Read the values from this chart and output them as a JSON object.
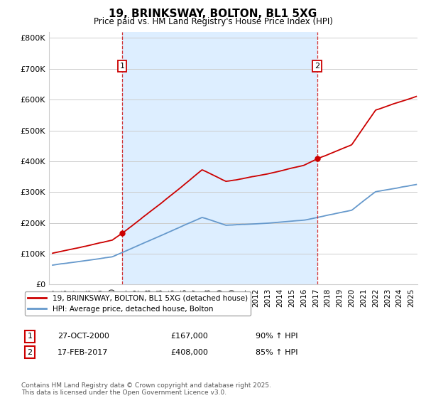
{
  "title": "19, BRINKSWAY, BOLTON, BL1 5XG",
  "subtitle": "Price paid vs. HM Land Registry's House Price Index (HPI)",
  "ylabel_ticks": [
    "£0",
    "£100K",
    "£200K",
    "£300K",
    "£400K",
    "£500K",
    "£600K",
    "£700K",
    "£800K"
  ],
  "ytick_values": [
    0,
    100000,
    200000,
    300000,
    400000,
    500000,
    600000,
    700000,
    800000
  ],
  "ylim": [
    0,
    820000
  ],
  "xlim_start": 1994.7,
  "xlim_end": 2025.5,
  "red_line_color": "#cc0000",
  "blue_line_color": "#6699cc",
  "vline_color": "#cc0000",
  "shade_color": "#ddeeff",
  "grid_color": "#cccccc",
  "bg_color": "#ffffff",
  "sale1_x": 2000.82,
  "sale1_y": 167000,
  "sale2_x": 2017.12,
  "sale2_y": 408000,
  "legend_line1": "19, BRINKSWAY, BOLTON, BL1 5XG (detached house)",
  "legend_line2": "HPI: Average price, detached house, Bolton",
  "sale1_date": "27-OCT-2000",
  "sale1_price": "£167,000",
  "sale1_hpi": "90% ↑ HPI",
  "sale2_date": "17-FEB-2017",
  "sale2_price": "£408,000",
  "sale2_hpi": "85% ↑ HPI",
  "footer": "Contains HM Land Registry data © Crown copyright and database right 2025.\nThis data is licensed under the Open Government Licence v3.0."
}
